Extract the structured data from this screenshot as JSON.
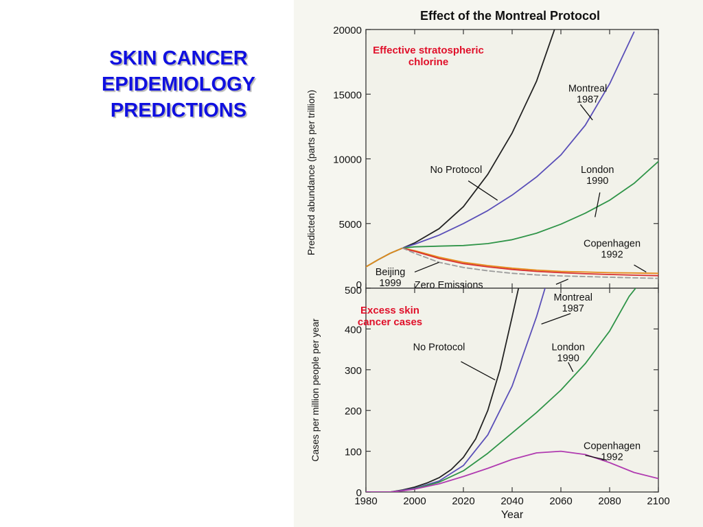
{
  "slide": {
    "title_lines": [
      "SKIN CANCER",
      "EPIDEMIOLOGY",
      "PREDICTIONS"
    ]
  },
  "colors": {
    "title": "#1010e0",
    "panel_bg": "#f2f2ea",
    "figure_bg": "#f6f6f0",
    "no_protocol": "#222222",
    "montreal": "#5a4fb8",
    "london": "#2f9448",
    "copenhagen_top": "#e58a1a",
    "beijing": "#d82f2f",
    "zero_emissions": "#9a9a9a",
    "copenhagen_bottom": "#b03ab0",
    "panel_heading": "#e0102a"
  },
  "figure": {
    "title": "Effect of the Montreal Protocol"
  },
  "chart_data": [
    {
      "type": "line",
      "heading_lines": [
        "Effective stratospheric",
        "chlorine"
      ],
      "xlabel": "",
      "ylabel": "Predicted abundance (parts per trillion)",
      "xlim": [
        1980,
        2100
      ],
      "ylim": [
        0,
        20000
      ],
      "yticks": [
        0,
        5000,
        10000,
        15000,
        20000
      ],
      "grid": false,
      "series": [
        {
          "key": "no_protocol",
          "dashed": false,
          "points": [
            [
              1980,
              1650
            ],
            [
              1985,
              2200
            ],
            [
              1990,
              2700
            ],
            [
              1995,
              3100
            ],
            [
              2000,
              3500
            ],
            [
              2010,
              4600
            ],
            [
              2020,
              6300
            ],
            [
              2030,
              8800
            ],
            [
              2040,
              12000
            ],
            [
              2050,
              16000
            ],
            [
              2057,
              19800
            ],
            [
              2060,
              21500
            ]
          ]
        },
        {
          "key": "montreal",
          "dashed": false,
          "points": [
            [
              1980,
              1650
            ],
            [
              1985,
              2200
            ],
            [
              1990,
              2700
            ],
            [
              1995,
              3100
            ],
            [
              2000,
              3400
            ],
            [
              2010,
              4100
            ],
            [
              2020,
              5000
            ],
            [
              2030,
              6000
            ],
            [
              2040,
              7200
            ],
            [
              2050,
              8600
            ],
            [
              2060,
              10300
            ],
            [
              2070,
              12600
            ],
            [
              2080,
              15800
            ],
            [
              2090,
              19800
            ]
          ]
        },
        {
          "key": "london",
          "dashed": false,
          "points": [
            [
              1980,
              1650
            ],
            [
              1985,
              2200
            ],
            [
              1990,
              2700
            ],
            [
              1995,
              3100
            ],
            [
              2000,
              3200
            ],
            [
              2010,
              3250
            ],
            [
              2020,
              3300
            ],
            [
              2030,
              3450
            ],
            [
              2040,
              3750
            ],
            [
              2050,
              4250
            ],
            [
              2060,
              4950
            ],
            [
              2070,
              5800
            ],
            [
              2080,
              6800
            ],
            [
              2090,
              8100
            ],
            [
              2100,
              9800
            ]
          ]
        },
        {
          "key": "copenhagen_top",
          "dashed": false,
          "points": [
            [
              1980,
              1650
            ],
            [
              1985,
              2200
            ],
            [
              1990,
              2700
            ],
            [
              1995,
              3100
            ],
            [
              2000,
              2900
            ],
            [
              2010,
              2400
            ],
            [
              2020,
              2000
            ],
            [
              2030,
              1750
            ],
            [
              2040,
              1550
            ],
            [
              2050,
              1400
            ],
            [
              2060,
              1300
            ],
            [
              2070,
              1250
            ],
            [
              2080,
              1200
            ],
            [
              2090,
              1180
            ],
            [
              2100,
              1150
            ]
          ]
        },
        {
          "key": "beijing",
          "dashed": false,
          "points": [
            [
              1995,
              3100
            ],
            [
              2000,
              2850
            ],
            [
              2010,
              2300
            ],
            [
              2020,
              1900
            ],
            [
              2030,
              1650
            ],
            [
              2040,
              1450
            ],
            [
              2050,
              1300
            ],
            [
              2060,
              1200
            ],
            [
              2070,
              1120
            ],
            [
              2080,
              1060
            ],
            [
              2090,
              1010
            ],
            [
              2100,
              970
            ]
          ]
        },
        {
          "key": "zero_emissions",
          "dashed": true,
          "points": [
            [
              1995,
              3100
            ],
            [
              2000,
              2700
            ],
            [
              2010,
              2000
            ],
            [
              2020,
              1600
            ],
            [
              2030,
              1350
            ],
            [
              2040,
              1150
            ],
            [
              2050,
              1030
            ],
            [
              2060,
              950
            ],
            [
              2070,
              900
            ],
            [
              2080,
              850
            ],
            [
              2090,
              800
            ],
            [
              2100,
              760
            ]
          ]
        }
      ],
      "annotations": [
        {
          "lines": [
            "No Protocol"
          ],
          "text_xy": [
            2017,
            8900
          ],
          "line_from": [
            2022,
            8300
          ],
          "line_to": [
            2034,
            6800
          ]
        },
        {
          "lines": [
            "Montreal",
            "1987"
          ],
          "text_xy": [
            2071,
            15200
          ],
          "line_from": [
            2068,
            14200
          ],
          "line_to": [
            2073,
            13000
          ]
        },
        {
          "lines": [
            "London",
            "1990"
          ],
          "text_xy": [
            2075,
            8900
          ],
          "line_from": [
            2076,
            7400
          ],
          "line_to": [
            2074,
            5500
          ]
        },
        {
          "lines": [
            "Copenhagen",
            "1992"
          ],
          "text_xy": [
            2081,
            3200
          ],
          "line_from": [
            2090,
            1800
          ],
          "line_to": [
            2095,
            1250
          ]
        },
        {
          "lines": [
            "Beijing",
            "1999"
          ],
          "text_xy": [
            1990,
            1000
          ],
          "line_from": [
            2000,
            1250
          ],
          "line_to": [
            2010,
            2000
          ]
        },
        {
          "lines": [
            "Zero Emissions"
          ],
          "text_xy": [
            2014,
            0
          ],
          "line_from": [
            2058,
            300
          ],
          "line_to": [
            2063,
            700
          ]
        }
      ]
    },
    {
      "type": "line",
      "heading_lines": [
        "Excess skin",
        "cancer cases"
      ],
      "xlabel": "Year",
      "ylabel": "Cases per million people per year",
      "xlim": [
        1980,
        2100
      ],
      "ylim": [
        0,
        500
      ],
      "yticks": [
        0,
        100,
        200,
        300,
        400,
        500
      ],
      "xticks": [
        1980,
        2000,
        2020,
        2040,
        2060,
        2080,
        2100
      ],
      "grid": false,
      "series": [
        {
          "key": "no_protocol",
          "dashed": false,
          "points": [
            [
              1980,
              0
            ],
            [
              1990,
              0
            ],
            [
              1995,
              5
            ],
            [
              2000,
              12
            ],
            [
              2005,
              22
            ],
            [
              2010,
              35
            ],
            [
              2015,
              55
            ],
            [
              2020,
              85
            ],
            [
              2025,
              130
            ],
            [
              2030,
              200
            ],
            [
              2035,
              300
            ],
            [
              2040,
              430
            ],
            [
              2043,
              510
            ]
          ]
        },
        {
          "key": "montreal",
          "dashed": false,
          "points": [
            [
              1980,
              0
            ],
            [
              1990,
              0
            ],
            [
              1995,
              4
            ],
            [
              2000,
              9
            ],
            [
              2010,
              27
            ],
            [
              2020,
              65
            ],
            [
              2030,
              140
            ],
            [
              2040,
              260
            ],
            [
              2050,
              430
            ],
            [
              2054,
              510
            ]
          ]
        },
        {
          "key": "london",
          "dashed": false,
          "points": [
            [
              1980,
              0
            ],
            [
              1990,
              0
            ],
            [
              1995,
              3
            ],
            [
              2000,
              8
            ],
            [
              2010,
              24
            ],
            [
              2020,
              52
            ],
            [
              2030,
              95
            ],
            [
              2040,
              145
            ],
            [
              2050,
              195
            ],
            [
              2060,
              250
            ],
            [
              2070,
              315
            ],
            [
              2080,
              395
            ],
            [
              2088,
              480
            ],
            [
              2092,
              510
            ]
          ]
        },
        {
          "key": "copenhagen_bottom",
          "dashed": false,
          "points": [
            [
              1980,
              0
            ],
            [
              1990,
              0
            ],
            [
              1995,
              3
            ],
            [
              2000,
              7
            ],
            [
              2010,
              20
            ],
            [
              2020,
              38
            ],
            [
              2030,
              58
            ],
            [
              2040,
              80
            ],
            [
              2050,
              96
            ],
            [
              2060,
              100
            ],
            [
              2070,
              92
            ],
            [
              2080,
              72
            ],
            [
              2090,
              48
            ],
            [
              2100,
              33
            ]
          ]
        }
      ],
      "annotations": [
        {
          "lines": [
            "No Protocol"
          ],
          "text_xy": [
            2010,
            348
          ],
          "line_from": [
            2019,
            320
          ],
          "line_to": [
            2033,
            275
          ]
        },
        {
          "lines": [
            "Montreal",
            "1987"
          ],
          "text_xy": [
            2065,
            470
          ],
          "line_from": [
            2064,
            438
          ],
          "line_to": [
            2052,
            412
          ]
        },
        {
          "lines": [
            "London",
            "1990"
          ],
          "text_xy": [
            2063,
            348
          ],
          "line_from": [
            2063,
            318
          ],
          "line_to": [
            2065,
            295
          ]
        },
        {
          "lines": [
            "Copenhagen",
            "1992"
          ],
          "text_xy": [
            2081,
            105
          ],
          "line_from": [
            2079,
            78
          ],
          "line_to": [
            2070,
            90
          ]
        }
      ]
    }
  ]
}
